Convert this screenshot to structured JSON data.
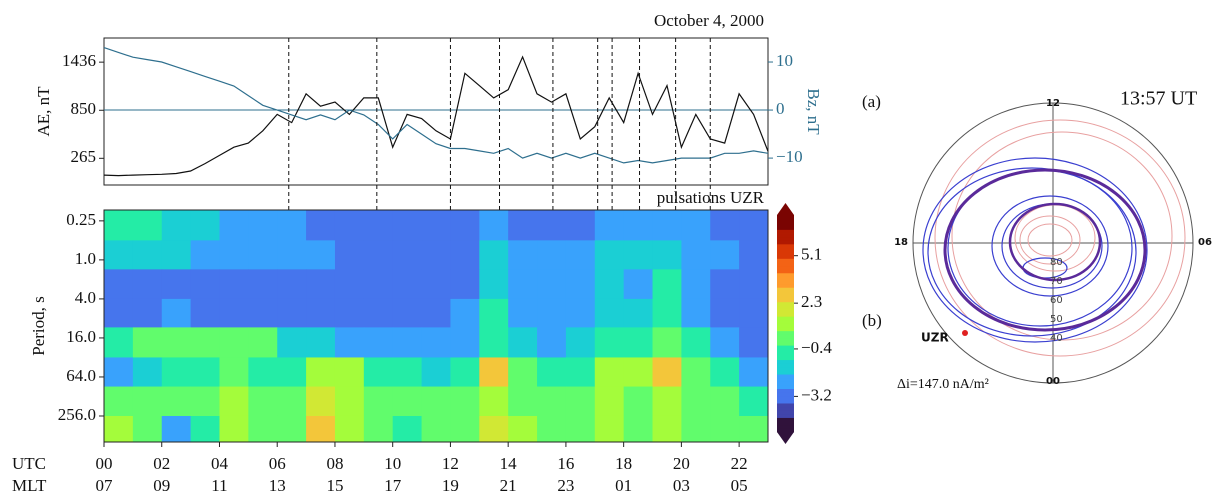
{
  "chart_data": [
    {
      "type": "line",
      "title": "October 4, 2000",
      "ylabel": "AE, nT",
      "y2label": "Bz, nT",
      "x": [
        0,
        0.5,
        1,
        1.5,
        2,
        2.5,
        3,
        3.5,
        4,
        4.5,
        5,
        5.5,
        6,
        6.5,
        7,
        7.5,
        8,
        8.5,
        9,
        9.5,
        10,
        10.5,
        11,
        11.5,
        12,
        12.5,
        13,
        13.5,
        14,
        14.5,
        15,
        15.5,
        16,
        16.5,
        17,
        17.5,
        18,
        18.5,
        19,
        19.5,
        20,
        20.5,
        21,
        21.5,
        22,
        22.5,
        23
      ],
      "xlim": [
        0,
        23
      ],
      "ylim": [
        -60,
        1730
      ],
      "yticks": [
        265,
        850,
        1436
      ],
      "y2lim": [
        -15.6,
        15
      ],
      "y2ticks": [
        {
          "value": -10,
          "label": "−10"
        },
        0,
        10
      ],
      "y2_refline": 0,
      "series": [
        {
          "color": "#111111",
          "values": [
            60,
            55,
            60,
            65,
            70,
            80,
            110,
            200,
            300,
            400,
            450,
            600,
            800,
            700,
            1050,
            900,
            950,
            800,
            1000,
            1000,
            400,
            800,
            750,
            600,
            500,
            1300,
            1150,
            1000,
            1100,
            1500,
            1050,
            950,
            1050,
            500,
            650,
            1000,
            700,
            1300,
            800,
            1150,
            400,
            800,
            500,
            450,
            1050,
            800,
            350
          ]
        },
        {
          "color": "#2e6f8e",
          "axis": "y2",
          "values": [
            13,
            12,
            11,
            10.5,
            10,
            9,
            8,
            7,
            6,
            5,
            3,
            1,
            0,
            -1,
            -2,
            -1,
            -2,
            0,
            -1,
            -3,
            -6,
            -3,
            -5,
            -7,
            -8,
            -8,
            -8.5,
            -9,
            -8,
            -10,
            -9,
            -10,
            -9,
            -10,
            -9,
            -10,
            -11,
            -10.5,
            -11,
            -10.5,
            -10,
            -10,
            -10,
            -9,
            -9,
            -8.5,
            -9
          ]
        }
      ],
      "vlines": [
        6.4,
        9.45,
        12,
        13.7,
        15.55,
        17.1,
        17.6,
        18.55,
        19.8,
        21
      ]
    },
    {
      "type": "heatmap",
      "title": "pulsations UZR",
      "ylabel": "Period, s",
      "log_y": true,
      "ylim": [
        0.17,
        645
      ],
      "yticks": [
        0.25,
        {
          "value": 1,
          "label": "1.0"
        },
        {
          "value": 4,
          "label": "4.0"
        },
        {
          "value": 16,
          "label": "16.0"
        },
        {
          "value": 64,
          "label": "64.0"
        },
        {
          "value": 256,
          "label": "256.0"
        }
      ],
      "xlim": [
        0,
        23
      ],
      "xticks": [
        {
          "value": 0,
          "label": "00"
        },
        {
          "value": 2,
          "label": "02"
        },
        {
          "value": 4,
          "label": "04"
        },
        {
          "value": 6,
          "label": "06"
        },
        {
          "value": 8,
          "label": "08"
        },
        10,
        12,
        14,
        16,
        18,
        20,
        22
      ],
      "x_row_titles": [
        "UTC",
        "MLT"
      ],
      "mlt_labels": [
        "07",
        "09",
        "11",
        "13",
        "15",
        "17",
        "19",
        "21",
        "23",
        "01",
        "03",
        "05"
      ],
      "x_bins": [
        0,
        1,
        2,
        3,
        4,
        5,
        6,
        7,
        8,
        9,
        10,
        11,
        12,
        13,
        14,
        15,
        16,
        17,
        18,
        19,
        20,
        21,
        22,
        23
      ],
      "y_bins": [
        0.17,
        0.5,
        1.4,
        4,
        11,
        32,
        90,
        256,
        645
      ],
      "z": [
        [
          -1,
          -1,
          -1.5,
          -1.5,
          -2,
          -2.5,
          -2.5,
          -3,
          -3,
          -3,
          -3,
          -3,
          -3,
          -2.5,
          -3,
          -3,
          -3,
          -2.5,
          -2.5,
          -2,
          -2.5,
          -3,
          -3
        ],
        [
          -1.5,
          -1.5,
          -1.5,
          -2,
          -2,
          -2.5,
          -2.5,
          -2.5,
          -3,
          -3,
          -3,
          -3,
          -3,
          -1.5,
          -2,
          -2.5,
          -2,
          -1.5,
          -1.5,
          -1.5,
          -2,
          -2.5,
          -3
        ],
        [
          -3,
          -3,
          -3,
          -3,
          -3,
          -3,
          -3,
          -3.5,
          -3.5,
          -3.5,
          -3.5,
          -3.5,
          -3,
          -1.5,
          -2,
          -2.5,
          -2.5,
          -1.5,
          -2,
          -1,
          -2,
          -3,
          -3.5
        ],
        [
          -3,
          -3,
          -2.5,
          -3,
          -3,
          -3,
          -3,
          -3.5,
          -3.5,
          -3.5,
          -3.5,
          -3,
          -2,
          -1,
          -2,
          -2.5,
          -2,
          -1.5,
          -1.5,
          -1,
          -2,
          -3,
          -3.5
        ],
        [
          -1,
          0.5,
          0.5,
          0.5,
          0.5,
          0,
          -1.5,
          -1.5,
          -2,
          -2.5,
          -2.5,
          -2,
          -2,
          -0.5,
          -1.5,
          -2,
          -1.5,
          -1,
          -0.5,
          0,
          -1,
          -2.5,
          -3
        ],
        [
          -2,
          -1.5,
          -1,
          -1,
          0,
          -0.5,
          -1,
          1.5,
          1,
          -1,
          -1,
          -1.5,
          -1,
          2.5,
          0,
          -0.5,
          -0.5,
          1.5,
          1,
          2.5,
          0.5,
          -1,
          -2
        ],
        [
          0,
          0.5,
          0,
          0.5,
          1,
          0,
          0.5,
          2,
          1.5,
          0.5,
          0,
          0.5,
          0,
          1.5,
          0.5,
          0,
          0,
          1,
          0.5,
          1,
          0.5,
          0,
          -0.5
        ],
        [
          1,
          0,
          -2,
          -1,
          1.5,
          0.5,
          0,
          2.5,
          1,
          0.5,
          -0.5,
          0.5,
          0,
          2,
          1,
          0,
          0.5,
          1,
          0,
          1,
          0.5,
          0,
          0
        ]
      ],
      "zlim": [
        -5.3,
        7.5
      ],
      "zticks": [
        {
          "value": -3.2,
          "label": "−3.2"
        },
        {
          "value": -0.4,
          "label": "−0.4"
        },
        2.3,
        5.1
      ],
      "colormap": [
        "#30123b",
        "#4145ab",
        "#4675ed",
        "#39a2fc",
        "#1bcfd4",
        "#24eca6",
        "#61fc6c",
        "#a4fc3b",
        "#d1e834",
        "#f3c63a",
        "#fe9b2d",
        "#f36315",
        "#d93806",
        "#b11901",
        "#7a0402"
      ]
    }
  ],
  "polar": {
    "panel_a": "(a)",
    "panel_b": "(b)",
    "time": "13:57 UT",
    "mlt_top": "12",
    "mlt_left": "18",
    "mlt_right": "06",
    "mlt_bottom": "00",
    "lat_labels": [
      "80",
      "70",
      "60",
      "50",
      "40"
    ],
    "station": "UZR",
    "delta_i": "Δi=147.0 nA/m²"
  }
}
